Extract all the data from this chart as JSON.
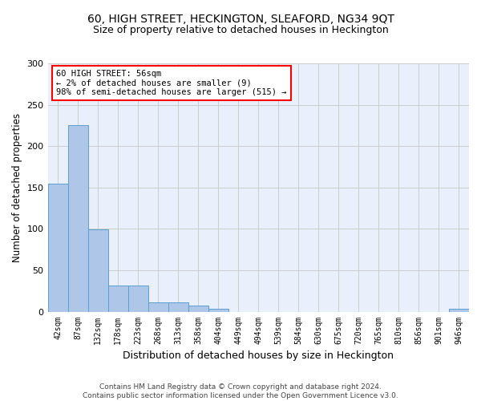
{
  "title": "60, HIGH STREET, HECKINGTON, SLEAFORD, NG34 9QT",
  "subtitle": "Size of property relative to detached houses in Heckington",
  "xlabel": "Distribution of detached houses by size in Heckington",
  "ylabel": "Number of detached properties",
  "bar_color": "#aec6e8",
  "bar_edge_color": "#5a9fd4",
  "background_color": "#eaf0fb",
  "annotation_box_text": "60 HIGH STREET: 56sqm\n← 2% of detached houses are smaller (9)\n98% of semi-detached houses are larger (515) →",
  "annotation_box_color": "#ff0000",
  "bins": [
    "42sqm",
    "87sqm",
    "132sqm",
    "178sqm",
    "223sqm",
    "268sqm",
    "313sqm",
    "358sqm",
    "404sqm",
    "449sqm",
    "494sqm",
    "539sqm",
    "584sqm",
    "630sqm",
    "675sqm",
    "720sqm",
    "765sqm",
    "810sqm",
    "856sqm",
    "901sqm",
    "946sqm"
  ],
  "values": [
    155,
    225,
    99,
    32,
    32,
    11,
    11,
    7,
    3,
    0,
    0,
    0,
    0,
    0,
    0,
    0,
    0,
    0,
    0,
    0,
    3
  ],
  "ylim": [
    0,
    300
  ],
  "yticks": [
    0,
    50,
    100,
    150,
    200,
    250,
    300
  ],
  "footer": "Contains HM Land Registry data © Crown copyright and database right 2024.\nContains public sector information licensed under the Open Government Licence v3.0.",
  "grid_color": "#cccccc",
  "title_fontsize": 10,
  "subtitle_fontsize": 9,
  "ylabel_fontsize": 8.5,
  "xlabel_fontsize": 9
}
